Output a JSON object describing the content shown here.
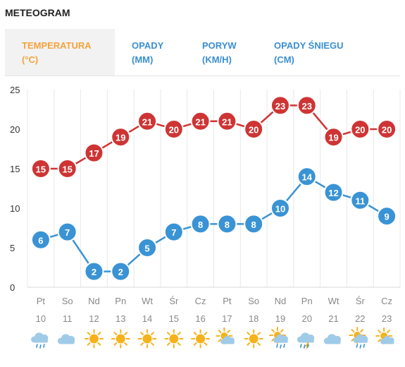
{
  "header": {
    "title": "METEOGRAM"
  },
  "tabs": [
    {
      "line1": "TEMPERATURA",
      "line2": "(°C)",
      "active": true
    },
    {
      "line1": "OPADY",
      "line2": "(MM)",
      "active": false
    },
    {
      "line1": "PORYW",
      "line2": "(KM/H)",
      "active": false
    },
    {
      "line1": "OPADY ŚNIEGU",
      "line2": "(CM)",
      "active": false
    }
  ],
  "colors": {
    "max": "#cf3434",
    "min": "#3a93d4",
    "sun": "#f5b21c",
    "cloud": "#9fcbe8",
    "tab_active": "#f3a33b",
    "tab": "#3a8fd0"
  },
  "chart_data": {
    "type": "line",
    "ylim": [
      0,
      25
    ],
    "yticks": [
      0,
      5,
      10,
      15,
      20,
      25
    ],
    "grid": true,
    "days": [
      {
        "name": "Pt",
        "date": "10",
        "icon": "cloud-rain-icon"
      },
      {
        "name": "So",
        "date": "11",
        "icon": "cloud-icon"
      },
      {
        "name": "Nd",
        "date": "12",
        "icon": "sun-icon"
      },
      {
        "name": "Pn",
        "date": "13",
        "icon": "sun-icon"
      },
      {
        "name": "Wt",
        "date": "14",
        "icon": "sun-icon"
      },
      {
        "name": "Śr",
        "date": "15",
        "icon": "sun-icon"
      },
      {
        "name": "Cz",
        "date": "16",
        "icon": "sun-icon"
      },
      {
        "name": "Pt",
        "date": "17",
        "icon": "sun-cloud-icon"
      },
      {
        "name": "So",
        "date": "18",
        "icon": "sun-icon"
      },
      {
        "name": "Nd",
        "date": "19",
        "icon": "sun-cloud-rain-icon"
      },
      {
        "name": "Pn",
        "date": "20",
        "icon": "cloud-storm-icon"
      },
      {
        "name": "Wt",
        "date": "21",
        "icon": "cloud-icon"
      },
      {
        "name": "Śr",
        "date": "22",
        "icon": "sun-cloud-rain-icon"
      },
      {
        "name": "Cz",
        "date": "23",
        "icon": "sun-cloud-icon"
      }
    ],
    "series": [
      {
        "values": [
          15,
          15,
          17,
          19,
          21,
          20,
          21,
          21,
          20,
          23,
          23,
          19,
          20,
          20
        ]
      },
      {
        "values": [
          6,
          7,
          2,
          2,
          5,
          7,
          8,
          8,
          8,
          10,
          14,
          12,
          11,
          9
        ]
      }
    ]
  }
}
